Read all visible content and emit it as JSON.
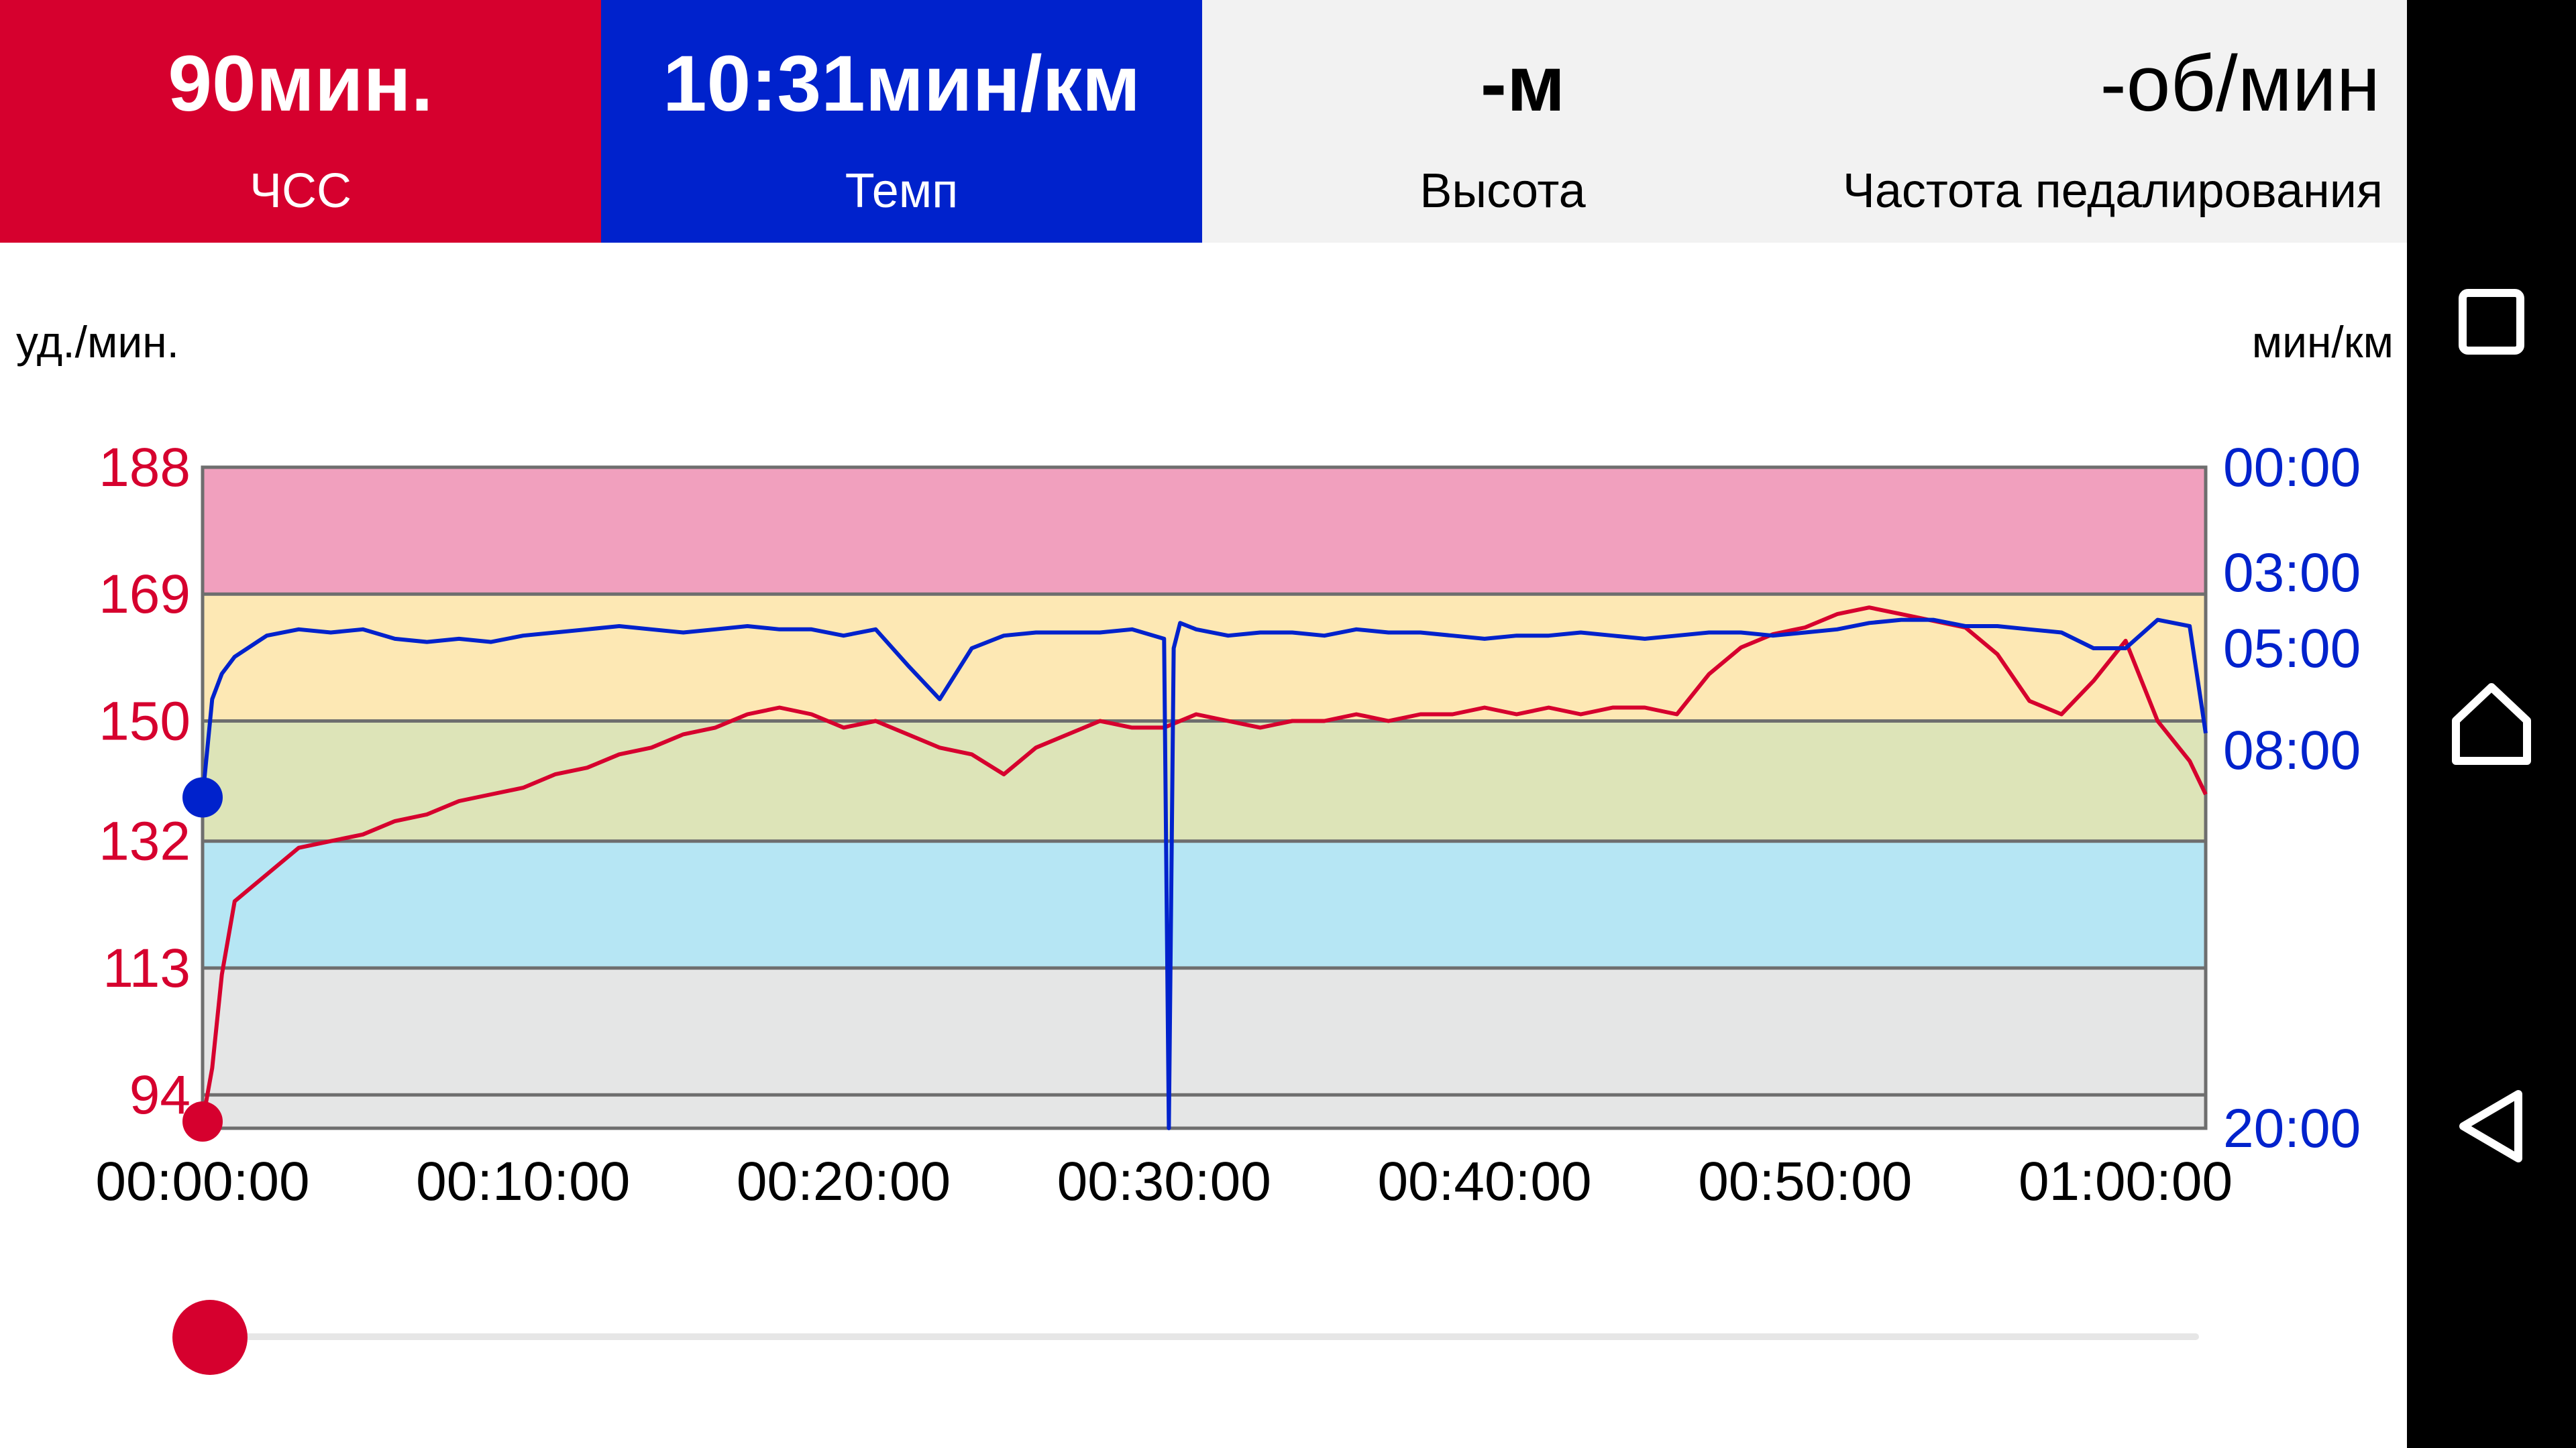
{
  "tiles": {
    "hr": {
      "value": "90мин.",
      "label": "ЧСС",
      "bg": "#d6002e",
      "fg": "#ffffff"
    },
    "pace": {
      "value": "10:31мин/км",
      "label": "Темп",
      "bg": "#0022cc",
      "fg": "#ffffff"
    },
    "altitude": {
      "value": "-м",
      "label": "Высота",
      "bg": "#f2f2f2",
      "fg": "#000000"
    },
    "cadence": {
      "value": "-об/мин",
      "label": "Частота педалирования",
      "bg": "#f2f2f2",
      "fg": "#000000"
    }
  },
  "axis_units": {
    "left": "уд./мин.",
    "right": "мин/км"
  },
  "colors": {
    "hr": "#d6002e",
    "pace": "#0022cc",
    "zone5": "#f1a0be",
    "zone4": "#fde8b4",
    "zone3": "#dde4b8",
    "zone2": "#b6e6f4",
    "zone1": "#e5e6e6",
    "zone0": "#e5e6e6"
  },
  "icons": {
    "recents": "square-icon",
    "home": "home-icon",
    "back": "back-triangle-icon"
  },
  "chart_data": {
    "type": "line",
    "x_unit": "elapsed time (hh:mm:ss)",
    "x_range": [
      "00:00:00",
      "01:02:30"
    ],
    "x_ticks": [
      "00:00:00",
      "00:10:00",
      "00:20:00",
      "00:30:00",
      "00:40:00",
      "00:50:00",
      "01:00:00"
    ],
    "y_left": {
      "label": "уд./мин.",
      "ticks": [
        188,
        169,
        150,
        132,
        113,
        94
      ],
      "range": [
        89,
        188
      ]
    },
    "y_right": {
      "label": "мин/км",
      "ticks": [
        "00:00",
        "03:00",
        "05:00",
        "08:00",
        "20:00"
      ]
    },
    "hr_zones": [
      {
        "from": 169,
        "to": 188
      },
      {
        "from": 150,
        "to": 169
      },
      {
        "from": 132,
        "to": 150
      },
      {
        "from": 113,
        "to": 132
      },
      {
        "from": 94,
        "to": 113
      },
      {
        "from": 89,
        "to": 94
      }
    ],
    "series": [
      {
        "axis": "left",
        "x": [
          0,
          0.3,
          0.6,
          1,
          2,
          3,
          4,
          5,
          6,
          7,
          8,
          9,
          10,
          11,
          12,
          13,
          14,
          15,
          16,
          17,
          18,
          19,
          20,
          21,
          22,
          23,
          24,
          25,
          26,
          27,
          28,
          29,
          30,
          31,
          32,
          33,
          34,
          35,
          36,
          37,
          38,
          39,
          40,
          41,
          42,
          43,
          44,
          45,
          46,
          47,
          48,
          49,
          50,
          51,
          52,
          53,
          54,
          55,
          56,
          57,
          58,
          59,
          60,
          61,
          62,
          62.5
        ],
        "values": [
          90,
          98,
          112,
          123,
          127,
          131,
          132,
          133,
          135,
          136,
          138,
          139,
          140,
          142,
          143,
          145,
          146,
          148,
          149,
          151,
          152,
          151,
          149,
          150,
          148,
          146,
          145,
          142,
          146,
          148,
          150,
          149,
          149,
          151,
          150,
          149,
          150,
          150,
          151,
          150,
          151,
          151,
          152,
          151,
          152,
          151,
          152,
          152,
          151,
          157,
          161,
          163,
          164,
          166,
          167,
          166,
          165,
          164,
          160,
          153,
          151,
          156,
          162,
          150,
          144,
          139
        ]
      },
      {
        "axis": "right",
        "x": [
          0,
          0.3,
          0.6,
          1,
          2,
          3,
          4,
          5,
          6,
          7,
          8,
          9,
          10,
          11,
          12,
          13,
          14,
          15,
          16,
          17,
          18,
          19,
          20,
          21,
          22,
          23,
          24,
          25,
          26,
          27,
          28,
          29,
          30,
          30.15,
          30.3,
          30.5,
          31,
          32,
          33,
          34,
          35,
          36,
          37,
          38,
          39,
          40,
          41,
          42,
          43,
          44,
          45,
          46,
          47,
          48,
          49,
          50,
          51,
          52,
          53,
          54,
          55,
          56,
          57,
          58,
          59,
          60,
          61,
          62,
          62.5
        ],
        "values": [
          "09:30",
          "06:30",
          "05:45",
          "05:15",
          "04:40",
          "04:30",
          "04:35",
          "04:30",
          "04:45",
          "04:50",
          "04:45",
          "04:50",
          "04:40",
          "04:35",
          "04:30",
          "04:25",
          "04:30",
          "04:35",
          "04:30",
          "04:25",
          "04:30",
          "04:30",
          "04:40",
          "04:30",
          "05:30",
          "06:30",
          "05:00",
          "04:40",
          "04:35",
          "04:35",
          "04:35",
          "04:30",
          "04:45",
          "20:00",
          "05:00",
          "04:20",
          "04:30",
          "04:40",
          "04:35",
          "04:35",
          "04:40",
          "04:30",
          "04:35",
          "04:35",
          "04:40",
          "04:45",
          "04:40",
          "04:40",
          "04:35",
          "04:40",
          "04:45",
          "04:40",
          "04:35",
          "04:35",
          "04:40",
          "04:35",
          "04:30",
          "04:20",
          "04:15",
          "04:15",
          "04:25",
          "04:25",
          "04:30",
          "04:35",
          "05:00",
          "05:00",
          "04:15",
          "04:25",
          "07:30"
        ]
      }
    ]
  }
}
